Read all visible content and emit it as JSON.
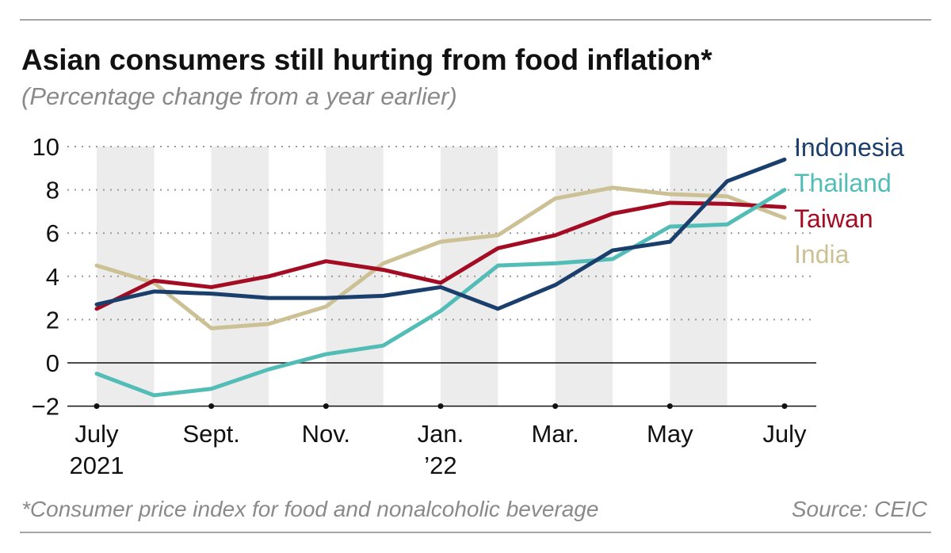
{
  "chart_data": {
    "type": "line",
    "title": "Asian consumers still hurting from food inflation*",
    "subtitle": "(Percentage change from a year earlier)",
    "x": [
      "2021-07",
      "2021-08",
      "2021-09",
      "2021-10",
      "2021-11",
      "2021-12",
      "2022-01",
      "2022-02",
      "2022-03",
      "2022-04",
      "2022-05",
      "2022-06",
      "2022-07"
    ],
    "x_tick_labels": [
      {
        "index": 0,
        "line1": "July",
        "line2": "2021"
      },
      {
        "index": 2,
        "line1": "Sept.",
        "line2": ""
      },
      {
        "index": 4,
        "line1": "Nov.",
        "line2": ""
      },
      {
        "index": 6,
        "line1": "Jan.",
        "line2": "’22"
      },
      {
        "index": 8,
        "line1": "Mar.",
        "line2": ""
      },
      {
        "index": 10,
        "line1": "May",
        "line2": ""
      },
      {
        "index": 12,
        "line1": "July",
        "line2": ""
      }
    ],
    "y_ticks": [
      10,
      8,
      6,
      4,
      2,
      0,
      -2
    ],
    "y_tick_labels": [
      "10",
      "8",
      "6",
      "4",
      "2",
      "0",
      "−2"
    ],
    "ylim": [
      -2,
      10
    ],
    "grid": "horizontal dotted",
    "legend": "right, inline labels",
    "series": [
      {
        "name": "Indonesia",
        "color": "#1b3f6d",
        "values": [
          2.7,
          3.3,
          3.2,
          3.0,
          3.0,
          3.1,
          3.5,
          2.5,
          3.6,
          5.2,
          5.6,
          8.4,
          9.4
        ]
      },
      {
        "name": "Thailand",
        "color": "#52bdb6",
        "values": [
          -0.5,
          -1.5,
          -1.2,
          -0.3,
          0.4,
          0.8,
          2.4,
          4.5,
          4.6,
          4.8,
          6.3,
          6.4,
          8.0
        ]
      },
      {
        "name": "Taiwan",
        "color": "#a30c22",
        "values": [
          2.5,
          3.8,
          3.5,
          4.0,
          4.7,
          4.3,
          3.7,
          5.3,
          5.9,
          6.9,
          7.4,
          7.35,
          7.2
        ]
      },
      {
        "name": "India",
        "color": "#ccc095",
        "values": [
          4.5,
          3.7,
          1.6,
          1.8,
          2.6,
          4.6,
          5.6,
          5.9,
          7.6,
          8.1,
          7.8,
          7.7,
          6.7
        ]
      }
    ],
    "footnote": "*Consumer price index for food and nonalcoholic beverage",
    "source": "Source: CEIC"
  }
}
